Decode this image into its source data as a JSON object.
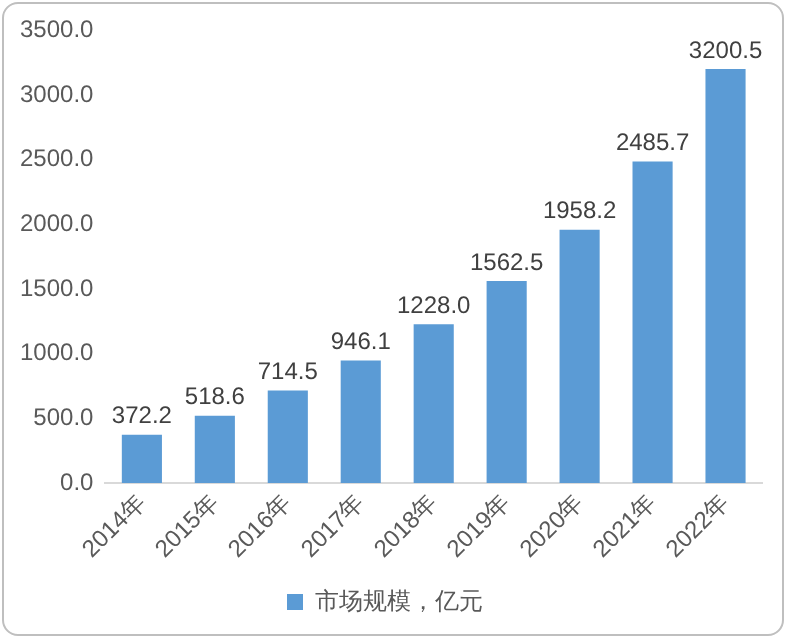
{
  "chart_data": {
    "type": "bar",
    "categories": [
      "2014年",
      "2015年",
      "2016年",
      "2017年",
      "2018年",
      "2019年",
      "2020年",
      "2021年",
      "2022年"
    ],
    "series": [
      {
        "name": "市场规模，亿元",
        "color": "#5b9bd5",
        "values": [
          372.2,
          518.6,
          714.5,
          946.1,
          1228,
          1562.5,
          1958.2,
          2485.7,
          3200.5
        ],
        "value_labels": [
          "372.2",
          "518.6",
          "714.5",
          "946.1",
          "1228.0",
          "1562.5",
          "1958.2",
          "2485.7",
          "3200.5"
        ]
      }
    ],
    "ylim": [
      0,
      3500
    ],
    "yticks": [
      {
        "value": 0,
        "label": "0.0"
      },
      {
        "value": 500,
        "label": "500.0"
      },
      {
        "value": 1000,
        "label": "1000.0"
      },
      {
        "value": 1500,
        "label": "1500.0"
      },
      {
        "value": 2000,
        "label": "2000.0"
      },
      {
        "value": 2500,
        "label": "2500.0"
      },
      {
        "value": 3000,
        "label": "3000.0"
      },
      {
        "value": 3500,
        "label": "3500.0"
      }
    ],
    "grid": false,
    "legend": "bottom"
  }
}
